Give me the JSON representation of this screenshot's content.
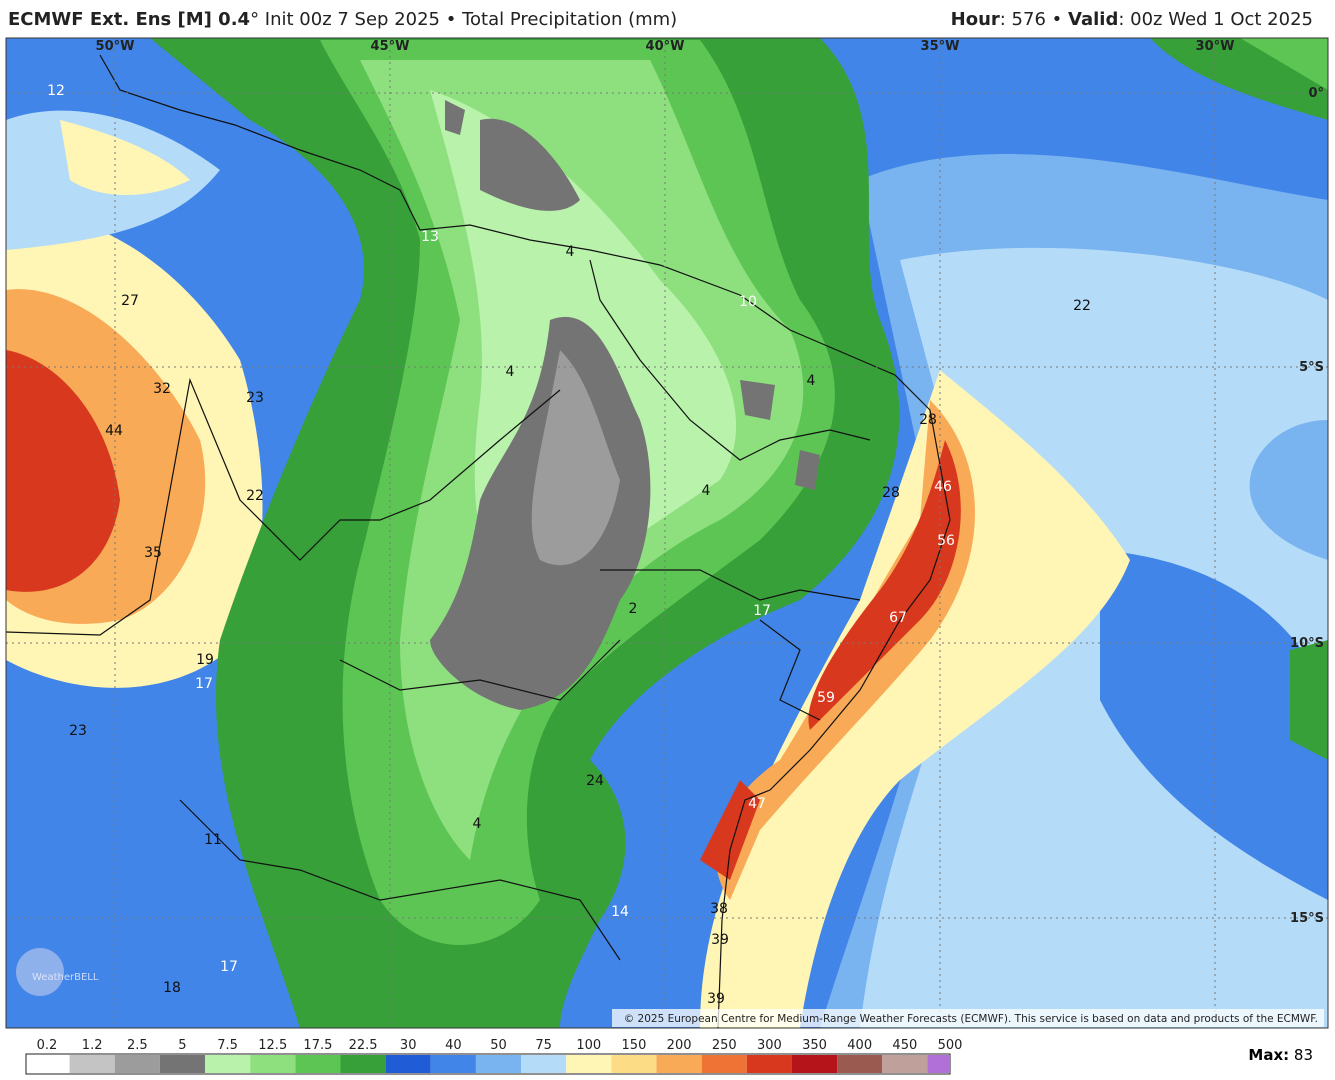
{
  "header": {
    "model": "ECMWF Ext. Ens [M] 0.4",
    "degree": "°",
    "init": "Init 00z 7 Sep 2025",
    "separator": "•",
    "field": "Total Precipitation (mm)",
    "hour_label": "Hour",
    "hour": ": 576",
    "valid_label": "Valid",
    "valid": ": 00z Wed 1 Oct 2025"
  },
  "map": {
    "lon_labels": [
      "50°W",
      "45°W",
      "40°W",
      "35°W",
      "30°W"
    ],
    "lat_labels": [
      "0°",
      "5°S",
      "10°S",
      "15°S"
    ],
    "point_values": [
      12,
      13,
      27,
      32,
      44,
      23,
      22,
      35,
      19,
      17,
      23,
      11,
      17,
      18,
      4,
      10,
      4,
      4,
      4,
      22,
      28,
      46,
      28,
      56,
      17,
      2,
      67,
      59,
      24,
      47,
      4,
      14,
      38,
      39,
      39
    ],
    "logo": "WeatherBELL",
    "copyright": "© 2025 European Centre for Medium-Range Weather Forecasts (ECMWF). This service is based on data and products of the ECMWF."
  },
  "legend": {
    "labels": [
      "0.2",
      "1.2",
      "2.5",
      "5",
      "7.5",
      "12.5",
      "17.5",
      "22.5",
      "30",
      "40",
      "50",
      "75",
      "100",
      "150",
      "200",
      "250",
      "300",
      "350",
      "400",
      "450",
      "500"
    ],
    "colors": [
      "#ffffff",
      "#c4c4c4",
      "#9c9c9c",
      "#747474",
      "#b9f2ab",
      "#8ee07e",
      "#5cc553",
      "#37a038",
      "#1f5cd6",
      "#4185e8",
      "#79b3f0",
      "#b4dcf8",
      "#fff5b5",
      "#fddc86",
      "#f8aa57",
      "#ee7335",
      "#d8381e",
      "#b4141a",
      "#9a5a50",
      "#c0a09a",
      "#b070d8"
    ],
    "max_label": "Max:",
    "max_value": 83
  }
}
